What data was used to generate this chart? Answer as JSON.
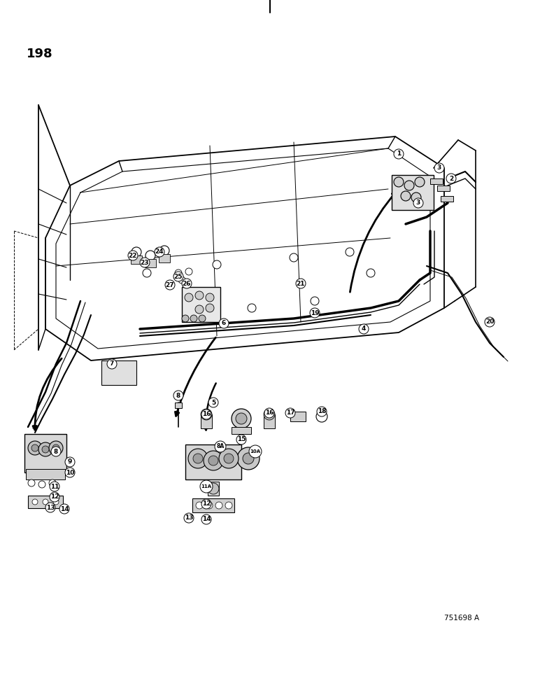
{
  "page_number": "198",
  "figure_id": "751698 A",
  "background_color": "#ffffff",
  "text_color": "#000000",
  "figsize": [
    7.72,
    10.0
  ],
  "dpi": 100
}
